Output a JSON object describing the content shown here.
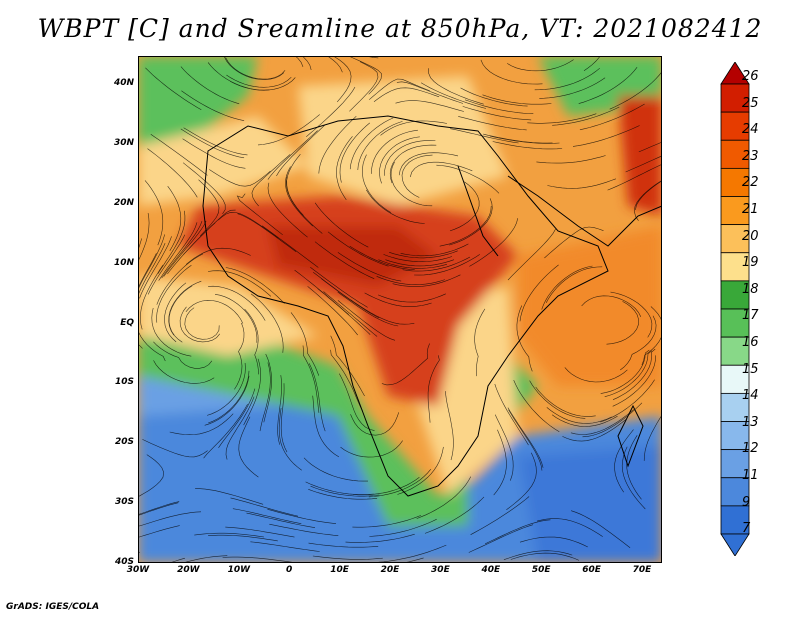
{
  "title": "WBPT [C] and Sreamline at 850hPa, VT: 2021082412",
  "credit": "GrADS: IGES/COLA",
  "lat_labels": [
    "40N",
    "30N",
    "20N",
    "10N",
    "EQ",
    "10S",
    "20S",
    "30S",
    "40S"
  ],
  "lon_labels": [
    "30W",
    "20W",
    "10W",
    "0",
    "10E",
    "20E",
    "30E",
    "40E",
    "50E",
    "60E",
    "70E"
  ],
  "colorbar_labels": [
    "26",
    "25",
    "24",
    "23",
    "22",
    "21",
    "20",
    "19",
    "18",
    "17",
    "16",
    "15",
    "14",
    "13",
    "12",
    "11",
    "9",
    "7"
  ],
  "colorbar_colors": [
    "#b40000",
    "#d21e00",
    "#e63c00",
    "#f05a00",
    "#f57800",
    "#fa9a1e",
    "#fcc05a",
    "#fde08c",
    "#39a839",
    "#58c058",
    "#88d888",
    "#e8f8f8",
    "#a8d0f0",
    "#88b8ec",
    "#6aa0e4",
    "#4c88dc",
    "#3070d4",
    "#3070d4"
  ],
  "map_colors": {
    "hot": "#d03010",
    "warm": "#f28a2a",
    "mild": "#fbd589",
    "cool": "#5cc05c",
    "cold": "#4c88dc",
    "coast": "#000000"
  }
}
